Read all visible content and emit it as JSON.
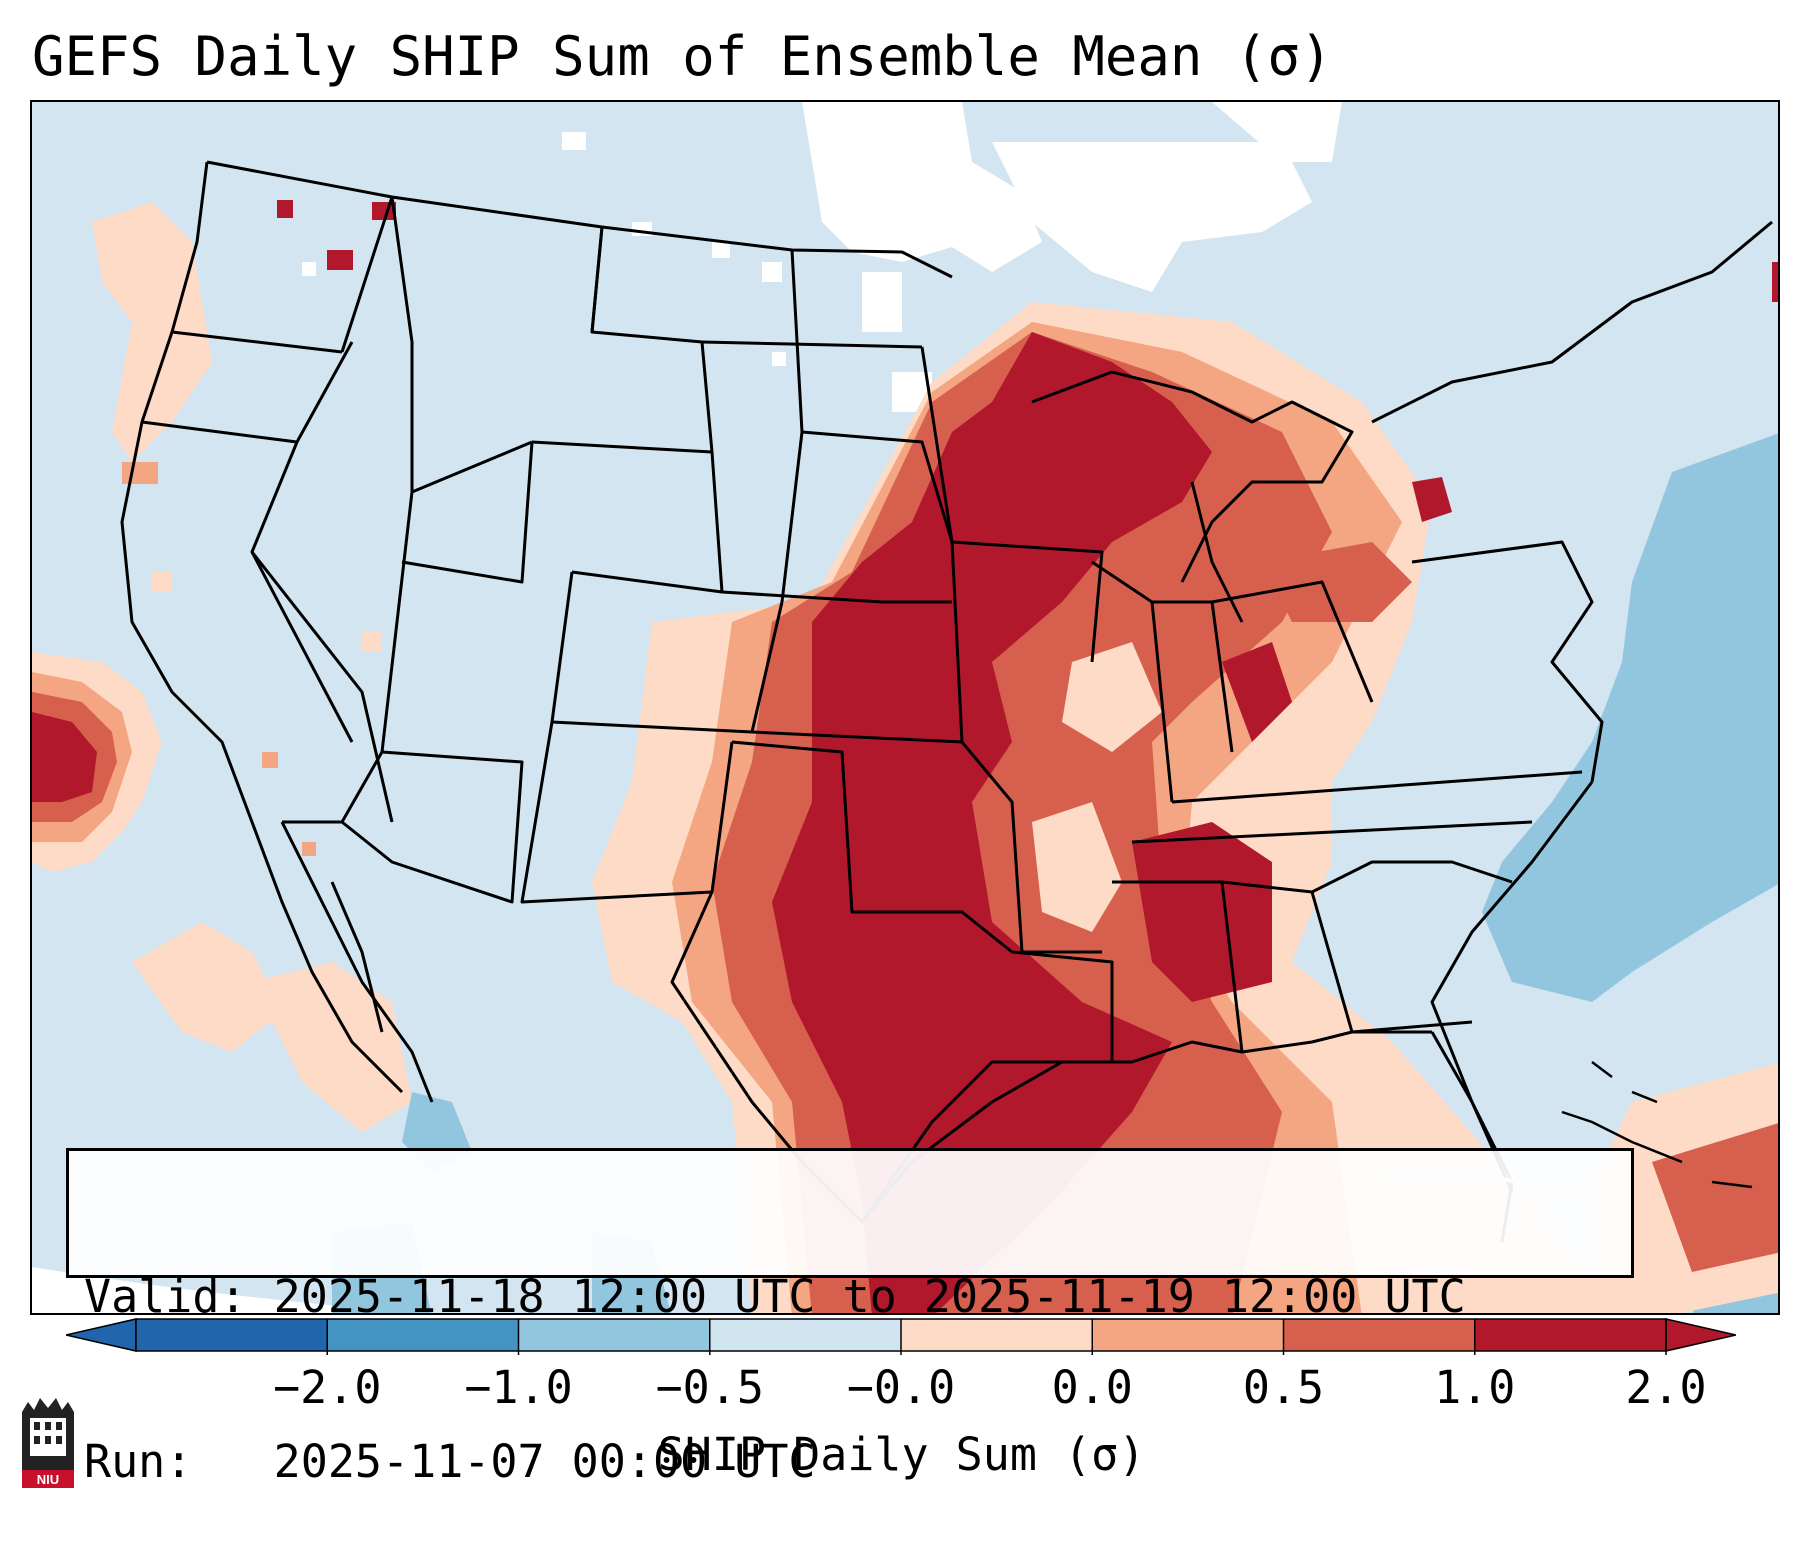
{
  "title": "GEFS Daily SHIP Sum of Ensemble Mean (σ)",
  "info": {
    "valid_label": "Valid:",
    "valid_value": "2025-11-18 12:00 UTC to 2025-11-19 12:00 UTC",
    "run_label": "Run:",
    "run_value": "2025-11-07 00:00 UTC"
  },
  "colorbar": {
    "label": "SHIP Daily Sum (σ)",
    "ticks": [
      "−2.0",
      "−1.0",
      "−0.5",
      "−0.0",
      "0.0",
      "0.5",
      "1.0",
      "2.0"
    ],
    "colors": [
      "#2166ac",
      "#4393c3",
      "#92c5de",
      "#d1e5f0",
      "#fddbc7",
      "#f4a582",
      "#d6604d",
      "#b2182b"
    ],
    "ocean_color": "#d2e5f0",
    "extend": "both"
  },
  "logo": {
    "text": "NIU",
    "icon": "niu-building-icon"
  }
}
